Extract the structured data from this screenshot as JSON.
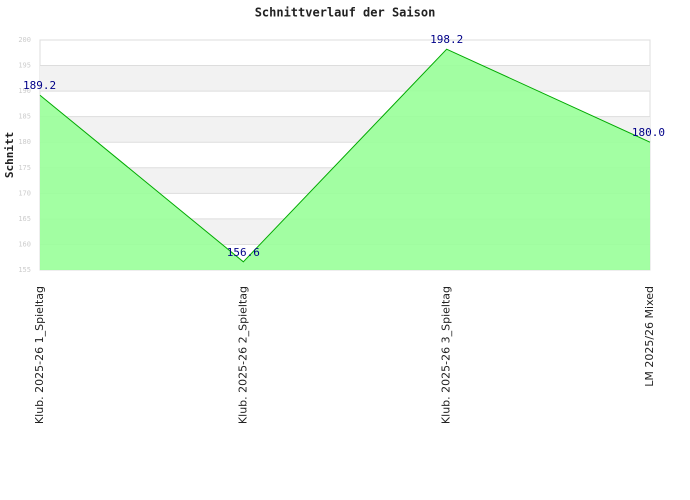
{
  "chart_data": {
    "type": "area",
    "title": "Schnittverlauf der Saison",
    "y_label": "Schnitt",
    "categories": [
      "Klub. 2025-26  1_Spieltag",
      "Klub. 2025-26  2_Spieltag",
      "Klub. 2025-26  3_Spieltag",
      "LM 2025/26 Mixed"
    ],
    "series": [
      {
        "name": "Schnitt",
        "color": "#00aa00",
        "fill": "#99ff99",
        "values": [
          189.2,
          156.6,
          198.2,
          180.0
        ],
        "value_labels": [
          "189.2",
          "156.6",
          "198.2",
          "180.0"
        ]
      }
    ],
    "ylim": [
      155,
      200
    ],
    "yticks": [
      155,
      160,
      165,
      170,
      175,
      180,
      185,
      190,
      195,
      200
    ],
    "grid": true
  }
}
